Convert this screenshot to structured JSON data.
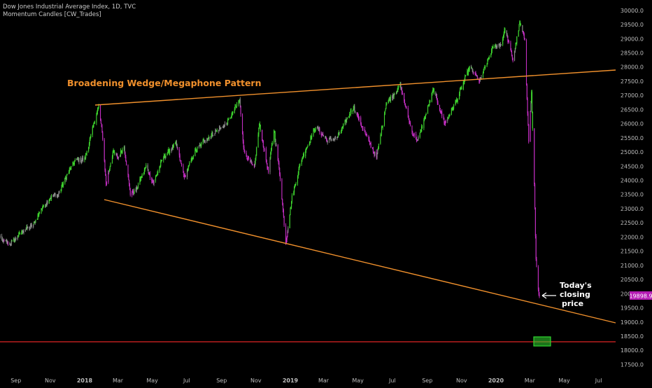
{
  "header": {
    "symbol_line": "Dow Jones Industrial Average Index, 1D, TVC",
    "indicator_line": "Momentum Candles [CW_Trades]"
  },
  "annotations": {
    "pattern_title": "Broadening Wedge/Megaphone Pattern",
    "closing_note": [
      "Today's",
      "closing",
      "price"
    ]
  },
  "price_badge": "19898.9",
  "colors": {
    "background": "#000000",
    "trendline": "#f0902c",
    "annotation_text": "#f0902c",
    "support_line": "#e02525",
    "bull_candle": "#3fd62f",
    "bear_candle": "#c52fc4",
    "neutral_candle": "#8c8c8c",
    "price_badge": "#b51cb4",
    "target_box": "#2fd62f"
  },
  "chart_data": {
    "type": "line",
    "title": "Dow Jones Industrial Average Index, 1D, TVC",
    "xlabel": "",
    "ylabel": "",
    "x_ticks": [
      "Sep",
      "Nov",
      "2018",
      "Mar",
      "May",
      "Jul",
      "Sep",
      "Nov",
      "2019",
      "Mar",
      "May",
      "Jul",
      "Sep",
      "Nov",
      "2020",
      "Mar",
      "May",
      "Jul"
    ],
    "y_ticks": [
      17500,
      18000,
      18500,
      19000,
      19500,
      20000,
      20500,
      21000,
      21500,
      22000,
      22500,
      23000,
      23500,
      24000,
      24500,
      25000,
      25500,
      26000,
      26500,
      27000,
      27500,
      28000,
      28500,
      29000,
      29500,
      30000
    ],
    "ylim": [
      17350,
      30150
    ],
    "grid": false,
    "series": [
      {
        "values": [
          [
            "2017-08-01",
            22000
          ],
          [
            "2017-08-10",
            21850
          ],
          [
            "2017-08-21",
            21750
          ],
          [
            "2017-09-01",
            21950
          ],
          [
            "2017-09-15",
            22250
          ],
          [
            "2017-10-01",
            22400
          ],
          [
            "2017-10-15",
            22950
          ],
          [
            "2017-11-01",
            23400
          ],
          [
            "2017-11-15",
            23500
          ],
          [
            "2017-12-01",
            24200
          ],
          [
            "2017-12-15",
            24700
          ],
          [
            "2018-01-01",
            24750
          ],
          [
            "2018-01-10",
            25400
          ],
          [
            "2018-01-20",
            26200
          ],
          [
            "2018-01-26",
            26617
          ],
          [
            "2018-02-02",
            25500
          ],
          [
            "2018-02-08",
            23860
          ],
          [
            "2018-02-20",
            25000
          ],
          [
            "2018-03-01",
            24800
          ],
          [
            "2018-03-12",
            25200
          ],
          [
            "2018-03-23",
            23533
          ],
          [
            "2018-04-02",
            23644
          ],
          [
            "2018-04-20",
            24500
          ],
          [
            "2018-05-03",
            23900
          ],
          [
            "2018-05-20",
            24800
          ],
          [
            "2018-06-12",
            25300
          ],
          [
            "2018-06-27",
            24100
          ],
          [
            "2018-07-15",
            25000
          ],
          [
            "2018-08-01",
            25400
          ],
          [
            "2018-08-20",
            25700
          ],
          [
            "2018-09-10",
            26000
          ],
          [
            "2018-10-03",
            26828
          ],
          [
            "2018-10-11",
            25000
          ],
          [
            "2018-10-29",
            24400
          ],
          [
            "2018-11-07",
            26000
          ],
          [
            "2018-11-23",
            24300
          ],
          [
            "2018-12-03",
            25800
          ],
          [
            "2018-12-14",
            24100
          ],
          [
            "2018-12-24",
            21792
          ],
          [
            "2019-01-04",
            23400
          ],
          [
            "2019-01-20",
            24700
          ],
          [
            "2019-02-15",
            25900
          ],
          [
            "2019-03-08",
            25400
          ],
          [
            "2019-03-25",
            25500
          ],
          [
            "2019-04-23",
            26600
          ],
          [
            "2019-05-15",
            25600
          ],
          [
            "2019-06-03",
            24800
          ],
          [
            "2019-06-20",
            26700
          ],
          [
            "2019-07-15",
            27350
          ],
          [
            "2019-08-05",
            25700
          ],
          [
            "2019-08-15",
            25400
          ],
          [
            "2019-09-12",
            27200
          ],
          [
            "2019-10-02",
            26000
          ],
          [
            "2019-10-25",
            26900
          ],
          [
            "2019-11-15",
            28000
          ],
          [
            "2019-12-03",
            27500
          ],
          [
            "2019-12-27",
            28700
          ],
          [
            "2020-01-10",
            28800
          ],
          [
            "2020-01-17",
            29350
          ],
          [
            "2020-01-31",
            28250
          ],
          [
            "2020-02-12",
            29551
          ],
          [
            "2020-02-21",
            28990
          ],
          [
            "2020-02-28",
            25400
          ],
          [
            "2020-03-04",
            27090
          ],
          [
            "2020-03-09",
            23850
          ],
          [
            "2020-03-12",
            21200
          ],
          [
            "2020-03-16",
            20190
          ],
          [
            "2020-03-18",
            19898.9
          ]
        ]
      }
    ]
  }
}
